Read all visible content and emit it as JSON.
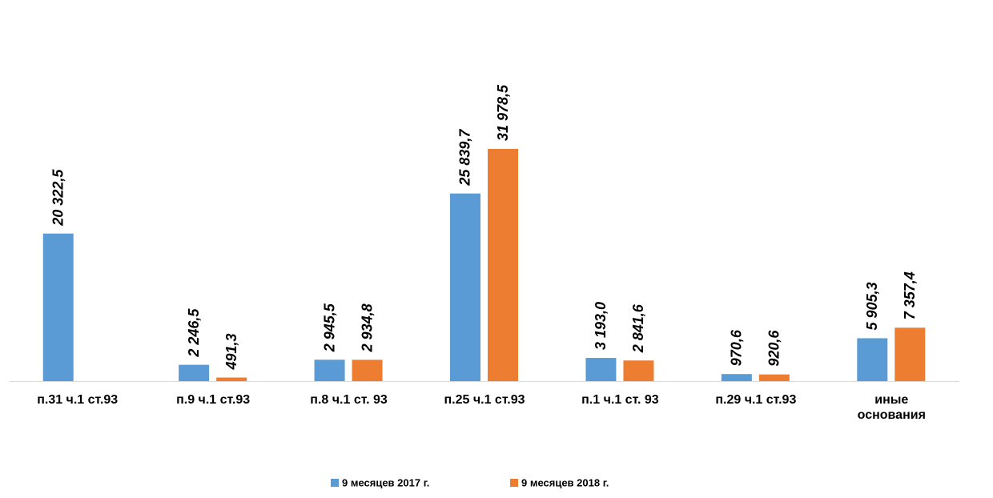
{
  "chart_data": {
    "type": "bar",
    "categories": [
      "п.31 ч.1 ст.93",
      "п.9 ч.1 ст.93",
      "п.8 ч.1 ст. 93",
      "п.25 ч.1 ст.93",
      "п.1 ч.1 ст. 93",
      "п.29 ч.1 ст.93",
      "иные\nоснования"
    ],
    "series": [
      {
        "name": "9 месяцев 2017 г.",
        "color": "#5b9bd5",
        "values": [
          20322.5,
          2246.5,
          2945.5,
          25839.7,
          3193.0,
          970.6,
          5905.3
        ],
        "value_labels": [
          "20 322,5",
          "2 246,5",
          "2 945,5",
          "25 839,7",
          "3 193,0",
          "970,6",
          "5 905,3"
        ]
      },
      {
        "name": "9 месяцев 2018 г.",
        "color": "#ed7d31",
        "values": [
          null,
          491.3,
          2934.8,
          31978.5,
          2841.6,
          920.6,
          7357.4
        ],
        "value_labels": [
          null,
          "491,3",
          "2 934,8",
          "31 978,5",
          "2 841,6",
          "920,6",
          "7 357,4"
        ]
      }
    ],
    "legend": "bottom"
  }
}
